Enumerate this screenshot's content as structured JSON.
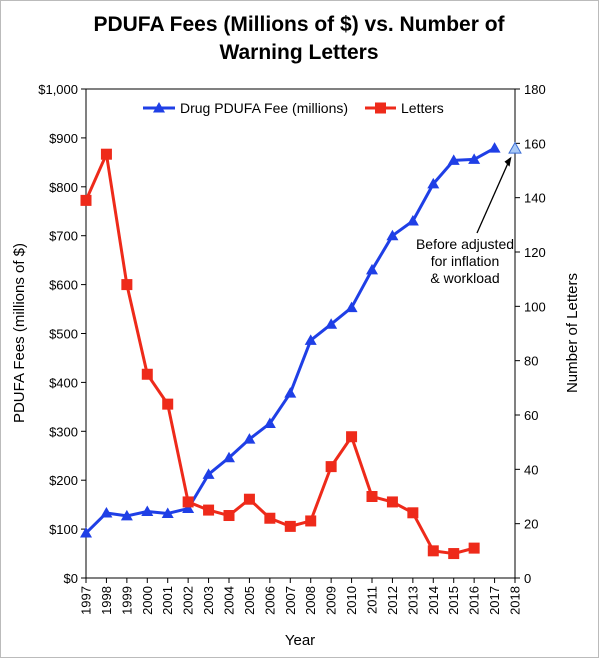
{
  "chart_data": {
    "type": "line",
    "title_lines": [
      "PDUFA Fees (Millions of $) vs. Number of",
      "Warning Letters"
    ],
    "xlabel": "Year",
    "ylabel_left": "PDUFA Fees (millions of $)",
    "ylabel_right": "Number of Letters",
    "categories": [
      "1997",
      "1998",
      "1999",
      "2000",
      "2001",
      "2002",
      "2003",
      "2004",
      "2005",
      "2006",
      "2007",
      "2008",
      "2009",
      "2010",
      "2011",
      "2012",
      "2013",
      "2014",
      "2015",
      "2016",
      "2017",
      "2018"
    ],
    "ylim_left": [
      0,
      1000
    ],
    "ylim_right": [
      0,
      180
    ],
    "left_ticks": [
      "$0",
      "$100",
      "$200",
      "$300",
      "$400",
      "$500",
      "$600",
      "$700",
      "$800",
      "$900",
      "$1,000"
    ],
    "right_ticks": [
      "0",
      "20",
      "40",
      "60",
      "80",
      "100",
      "120",
      "140",
      "160",
      "180"
    ],
    "legend_position": "top",
    "series": [
      {
        "name": "Drug PDUFA Fee (millions)",
        "axis": "left",
        "color": "#1f3fe6",
        "marker": "triangle",
        "x": [
          "1997",
          "1998",
          "1999",
          "2000",
          "2001",
          "2002",
          "2003",
          "2004",
          "2005",
          "2006",
          "2007",
          "2008",
          "2009",
          "2010",
          "2011",
          "2012",
          "2013",
          "2014",
          "2015",
          "2016",
          "2017"
        ],
        "values": [
          92,
          133,
          127,
          136,
          132,
          142,
          212,
          246,
          284,
          316,
          378,
          486,
          519,
          553,
          630,
          700,
          730,
          806,
          854,
          856,
          879
        ]
      },
      {
        "name": "Letters",
        "axis": "right",
        "color": "#ee2a1a",
        "marker": "square",
        "x": [
          "1997",
          "1998",
          "1999",
          "2000",
          "2001",
          "2002",
          "2003",
          "2004",
          "2005",
          "2006",
          "2007",
          "2008",
          "2009",
          "2010",
          "2011",
          "2012",
          "2013",
          "2014",
          "2015",
          "2016"
        ],
        "values": [
          139,
          156,
          108,
          75,
          64,
          28,
          25,
          23,
          29,
          22,
          19,
          21,
          41,
          52,
          30,
          28,
          24,
          10,
          9,
          11
        ]
      }
    ],
    "extra_point": {
      "series": "Drug PDUFA Fee (millions)",
      "x": "2018",
      "value": 878,
      "fill": "#a9c9f5"
    },
    "annotation": {
      "lines": [
        "Before adjusted",
        "for inflation",
        "& workload"
      ],
      "points_to_x": "2018"
    }
  }
}
